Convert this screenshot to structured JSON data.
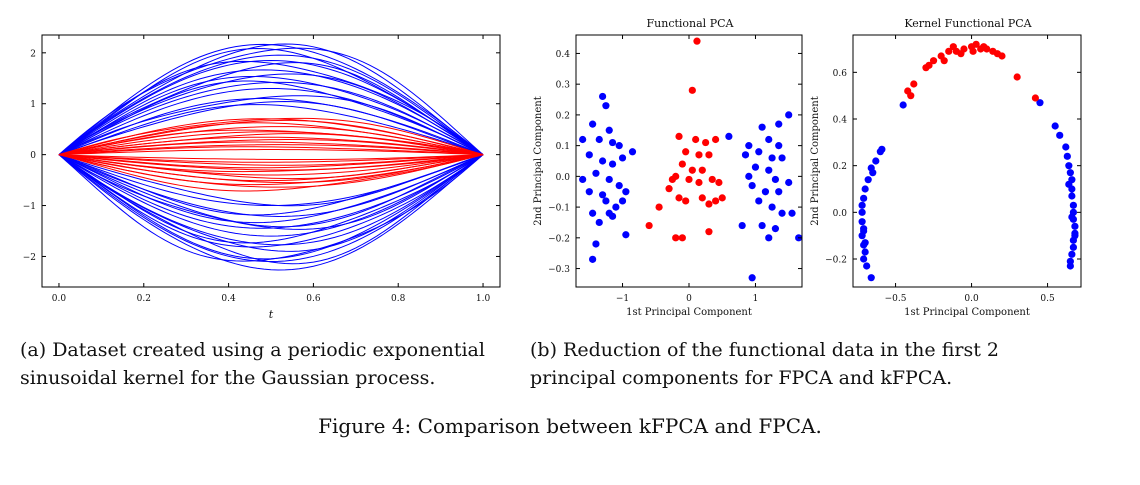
{
  "captions": {
    "a": "(a) Dataset created using a periodic exponential sinusoidal kernel for the Gaussian process.",
    "b": "(b) Reduction of the functional data in the first 2 principal components for FPCA and kFPCA.",
    "figure": "Figure 4: Comparison between kFPCA and FPCA."
  },
  "colors": {
    "class_a": "#0000ff",
    "class_b": "#ff0000"
  },
  "chart_data": [
    {
      "type": "line",
      "title": "",
      "xlabel": "t",
      "ylabel": "",
      "xlim": [
        -0.04,
        1.04
      ],
      "ylim": [
        -2.6,
        2.35
      ],
      "xticks": [
        "0.0",
        "0.2",
        "0.4",
        "0.6",
        "0.8",
        "1.0"
      ],
      "yticks": [
        "−2",
        "−1",
        "0",
        "1",
        "2"
      ],
      "grid": false,
      "description_of_series": "many sample curves f(t) starting and ending at 0",
      "series": [
        {
          "color": "#0000ff",
          "amplitudes": [
            2.2,
            2.15,
            2.1,
            2.0,
            1.95,
            1.9,
            1.85,
            1.75,
            1.7,
            1.6,
            1.55,
            1.45,
            1.4,
            1.3,
            1.2,
            1.1,
            1.0,
            0.95,
            -2.25,
            -2.2,
            -2.1,
            -2.05,
            -2.0,
            -1.9,
            -1.85,
            -1.8,
            -1.7,
            -1.6,
            -1.5,
            -1.45,
            -1.35,
            -1.3,
            -1.2,
            -1.1,
            -1.0,
            -0.95
          ]
        },
        {
          "color": "#ff0000",
          "amplitudes": [
            0.75,
            0.7,
            0.65,
            0.6,
            0.55,
            0.5,
            0.45,
            0.4,
            0.35,
            0.3,
            0.25,
            0.2,
            0.15,
            0.1,
            -0.1,
            -0.15,
            -0.2,
            -0.25,
            -0.3,
            -0.35,
            -0.4,
            -0.45,
            -0.5,
            -0.55,
            -0.6,
            -0.65,
            -0.7
          ]
        }
      ]
    },
    {
      "type": "scatter",
      "title": "Functional PCA",
      "xlabel": "1st Principal Component",
      "ylabel": "2nd Principal Component",
      "xlim": [
        -1.7,
        1.7
      ],
      "ylim": [
        -0.36,
        0.46
      ],
      "xticks": [
        -1,
        0,
        1
      ],
      "yticks": [
        -0.3,
        -0.2,
        -0.1,
        0.0,
        0.1,
        0.2,
        0.3,
        0.4
      ],
      "series": [
        {
          "color": "#0000ff",
          "points": [
            [
              -1.3,
              0.26
            ],
            [
              -1.25,
              0.23
            ],
            [
              -1.45,
              0.17
            ],
            [
              -1.2,
              0.15
            ],
            [
              -1.6,
              0.12
            ],
            [
              -1.15,
              0.11
            ],
            [
              -1.35,
              0.12
            ],
            [
              -1.05,
              0.1
            ],
            [
              -1.5,
              0.07
            ],
            [
              -1.3,
              0.05
            ],
            [
              -1.15,
              0.04
            ],
            [
              -1.0,
              0.06
            ],
            [
              -1.4,
              0.01
            ],
            [
              -1.6,
              -0.01
            ],
            [
              -1.2,
              -0.01
            ],
            [
              -1.05,
              -0.03
            ],
            [
              -0.85,
              0.08
            ],
            [
              -1.5,
              -0.05
            ],
            [
              -1.3,
              -0.06
            ],
            [
              -0.95,
              -0.05
            ],
            [
              -1.25,
              -0.08
            ],
            [
              -1.0,
              -0.08
            ],
            [
              -1.1,
              -0.1
            ],
            [
              -1.45,
              -0.12
            ],
            [
              -1.2,
              -0.12
            ],
            [
              -1.35,
              -0.15
            ],
            [
              -1.4,
              -0.22
            ],
            [
              -1.45,
              -0.27
            ],
            [
              -0.95,
              -0.19
            ],
            [
              -1.15,
              -0.13
            ],
            [
              1.35,
              0.17
            ],
            [
              1.1,
              0.16
            ],
            [
              1.5,
              0.2
            ],
            [
              0.9,
              0.1
            ],
            [
              1.2,
              0.12
            ],
            [
              1.35,
              0.1
            ],
            [
              1.05,
              0.08
            ],
            [
              0.85,
              0.07
            ],
            [
              1.25,
              0.06
            ],
            [
              1.4,
              0.06
            ],
            [
              1.0,
              0.03
            ],
            [
              1.2,
              0.02
            ],
            [
              0.9,
              0.0
            ],
            [
              1.3,
              -0.01
            ],
            [
              1.5,
              -0.02
            ],
            [
              0.95,
              -0.03
            ],
            [
              1.15,
              -0.05
            ],
            [
              1.35,
              -0.05
            ],
            [
              1.05,
              -0.08
            ],
            [
              1.25,
              -0.1
            ],
            [
              1.55,
              -0.12
            ],
            [
              0.8,
              -0.16
            ],
            [
              1.1,
              -0.16
            ],
            [
              1.3,
              -0.17
            ],
            [
              1.2,
              -0.2
            ],
            [
              1.65,
              -0.2
            ],
            [
              0.95,
              -0.33
            ],
            [
              1.4,
              -0.12
            ],
            [
              0.6,
              0.13
            ]
          ]
        },
        {
          "color": "#ff0000",
          "points": [
            [
              0.12,
              0.44
            ],
            [
              0.05,
              0.28
            ],
            [
              -0.15,
              0.13
            ],
            [
              0.1,
              0.12
            ],
            [
              0.25,
              0.11
            ],
            [
              0.4,
              0.12
            ],
            [
              -0.05,
              0.08
            ],
            [
              0.15,
              0.07
            ],
            [
              0.3,
              0.07
            ],
            [
              -0.1,
              0.04
            ],
            [
              0.05,
              0.02
            ],
            [
              0.2,
              0.02
            ],
            [
              -0.2,
              0.0
            ],
            [
              0.0,
              -0.01
            ],
            [
              0.15,
              -0.02
            ],
            [
              -0.3,
              -0.04
            ],
            [
              0.35,
              -0.01
            ],
            [
              0.45,
              -0.02
            ],
            [
              -0.15,
              -0.07
            ],
            [
              0.2,
              -0.07
            ],
            [
              0.5,
              -0.07
            ],
            [
              -0.05,
              -0.08
            ],
            [
              0.3,
              -0.09
            ],
            [
              0.4,
              -0.08
            ],
            [
              -0.45,
              -0.1
            ],
            [
              -0.6,
              -0.16
            ],
            [
              0.3,
              -0.18
            ],
            [
              -0.2,
              -0.2
            ],
            [
              -0.1,
              -0.2
            ],
            [
              -0.25,
              -0.01
            ]
          ]
        }
      ]
    },
    {
      "type": "scatter",
      "title": "Kernel Functional PCA",
      "xlabel": "1st Principal Component",
      "ylabel": "2nd Principal Component",
      "xlim": [
        -0.78,
        0.72
      ],
      "ylim": [
        -0.32,
        0.76
      ],
      "xticks": [
        -0.5,
        0.0,
        0.5
      ],
      "yticks": [
        -0.2,
        0.0,
        0.2,
        0.4,
        0.6
      ],
      "series": [
        {
          "color": "#0000ff",
          "points": [
            [
              -0.72,
              0.0
            ],
            [
              -0.72,
              -0.04
            ],
            [
              -0.71,
              -0.07
            ],
            [
              -0.72,
              -0.1
            ],
            [
              -0.71,
              -0.14
            ],
            [
              -0.7,
              -0.17
            ],
            [
              -0.71,
              -0.2
            ],
            [
              -0.69,
              -0.23
            ],
            [
              -0.66,
              -0.28
            ],
            [
              -0.72,
              0.03
            ],
            [
              -0.71,
              0.06
            ],
            [
              -0.7,
              0.1
            ],
            [
              -0.68,
              0.14
            ],
            [
              -0.65,
              0.17
            ],
            [
              -0.66,
              0.19
            ],
            [
              -0.63,
              0.22
            ],
            [
              -0.6,
              0.26
            ],
            [
              -0.59,
              0.27
            ],
            [
              -0.45,
              0.46
            ],
            [
              0.45,
              0.47
            ],
            [
              0.55,
              0.37
            ],
            [
              0.58,
              0.33
            ],
            [
              0.62,
              0.28
            ],
            [
              0.63,
              0.24
            ],
            [
              0.64,
              0.2
            ],
            [
              0.65,
              0.17
            ],
            [
              0.66,
              0.14
            ],
            [
              0.66,
              0.1
            ],
            [
              0.66,
              0.07
            ],
            [
              0.67,
              0.03
            ],
            [
              0.67,
              0.0
            ],
            [
              0.67,
              -0.03
            ],
            [
              0.68,
              -0.06
            ],
            [
              0.68,
              -0.09
            ],
            [
              0.67,
              -0.12
            ],
            [
              0.67,
              -0.15
            ],
            [
              0.66,
              -0.18
            ],
            [
              0.65,
              -0.21
            ],
            [
              0.65,
              -0.23
            ],
            [
              0.68,
              -0.1
            ],
            [
              0.66,
              -0.02
            ],
            [
              0.64,
              0.12
            ],
            [
              -0.7,
              -0.13
            ],
            [
              -0.71,
              -0.08
            ]
          ]
        },
        {
          "color": "#ff0000",
          "points": [
            [
              -0.38,
              0.55
            ],
            [
              -0.42,
              0.52
            ],
            [
              -0.4,
              0.5
            ],
            [
              -0.28,
              0.63
            ],
            [
              -0.25,
              0.65
            ],
            [
              -0.2,
              0.67
            ],
            [
              -0.15,
              0.69
            ],
            [
              -0.1,
              0.69
            ],
            [
              -0.05,
              0.7
            ],
            [
              0.0,
              0.71
            ],
            [
              0.03,
              0.72
            ],
            [
              0.06,
              0.7
            ],
            [
              0.1,
              0.7
            ],
            [
              0.14,
              0.69
            ],
            [
              0.17,
              0.68
            ],
            [
              0.2,
              0.67
            ],
            [
              -0.18,
              0.65
            ],
            [
              -0.12,
              0.71
            ],
            [
              0.08,
              0.71
            ],
            [
              0.3,
              0.58
            ],
            [
              0.42,
              0.49
            ],
            [
              -0.07,
              0.68
            ],
            [
              0.01,
              0.69
            ],
            [
              -0.3,
              0.62
            ]
          ]
        }
      ]
    }
  ]
}
